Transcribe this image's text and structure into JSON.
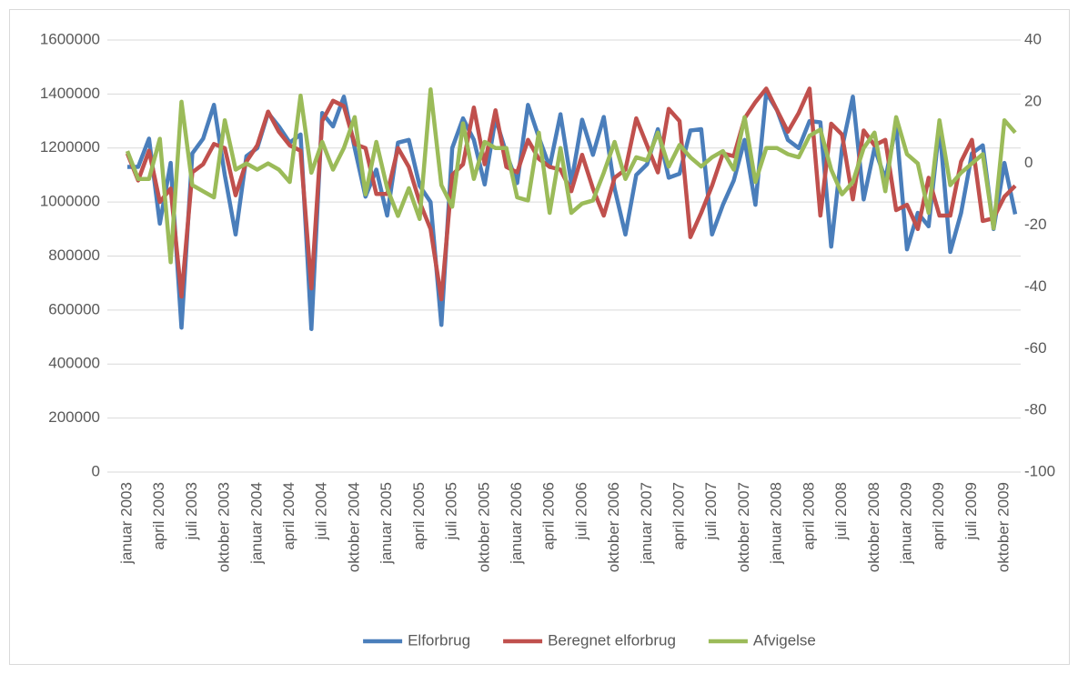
{
  "chart_data": {
    "type": "line",
    "categories": [
      "januar 2003",
      null,
      null,
      "april 2003",
      null,
      null,
      "juli 2003",
      null,
      null,
      "oktober 2003",
      null,
      null,
      "januar 2004",
      null,
      null,
      "april 2004",
      null,
      null,
      "juli 2004",
      null,
      null,
      "oktober 2004",
      null,
      null,
      "januar 2005",
      null,
      null,
      "april 2005",
      null,
      null,
      "juli 2005",
      null,
      null,
      "oktober 2005",
      null,
      null,
      "januar 2006",
      null,
      null,
      "april 2006",
      null,
      null,
      "juli 2006",
      null,
      null,
      "oktober 2006",
      null,
      null,
      "januar 2007",
      null,
      null,
      "april 2007",
      null,
      null,
      "juli 2007",
      null,
      null,
      "oktober 2007",
      null,
      null,
      "januar 2008",
      null,
      null,
      "april 2008",
      null,
      null,
      "juli 2008",
      null,
      null,
      "oktober 2008",
      null,
      null,
      "januar 2009",
      null,
      null,
      "april 2009",
      null,
      null,
      "juli 2009",
      null,
      null,
      "oktober 2009",
      null
    ],
    "series": [
      {
        "name": "Elforbrug",
        "color": "#4a7ebb",
        "values": [
          1130000,
          1130000,
          1235000,
          920000,
          1145000,
          535000,
          1180000,
          1235000,
          1360000,
          1100000,
          880000,
          1170000,
          1200000,
          1330000,
          1280000,
          1220000,
          1250000,
          530000,
          1330000,
          1280000,
          1390000,
          1200000,
          1020000,
          1120000,
          950000,
          1220000,
          1230000,
          1060000,
          1000000,
          545000,
          1200000,
          1310000,
          1230000,
          1065000,
          1310000,
          1180000,
          1070000,
          1360000,
          1240000,
          1130000,
          1325000,
          1070000,
          1305000,
          1175000,
          1315000,
          1050000,
          880000,
          1100000,
          1140000,
          1270000,
          1090000,
          1105000,
          1265000,
          1270000,
          880000,
          990000,
          1080000,
          1230000,
          990000,
          1405000,
          1340000,
          1230000,
          1200000,
          1300000,
          1295000,
          835000,
          1200000,
          1390000,
          1010000,
          1200000,
          1085000,
          1285000,
          825000,
          960000,
          910000,
          1280000,
          815000,
          960000,
          1180000,
          1210000,
          900000,
          1145000,
          955000
        ]
      },
      {
        "name": "Beregnet elforbrug",
        "color": "#c0504d",
        "values": [
          1180000,
          1080000,
          1190000,
          1000000,
          1050000,
          650000,
          1110000,
          1140000,
          1215000,
          1200000,
          1025000,
          1150000,
          1210000,
          1335000,
          1260000,
          1210000,
          1190000,
          680000,
          1300000,
          1375000,
          1355000,
          1215000,
          1200000,
          1030000,
          1030000,
          1200000,
          1130000,
          1000000,
          900000,
          640000,
          1100000,
          1140000,
          1350000,
          1140000,
          1340000,
          1130000,
          1110000,
          1230000,
          1160000,
          1130000,
          1120000,
          1040000,
          1175000,
          1050000,
          950000,
          1090000,
          1120000,
          1310000,
          1210000,
          1110000,
          1345000,
          1300000,
          870000,
          960000,
          1060000,
          1180000,
          1170000,
          1310000,
          1370000,
          1420000,
          1340000,
          1260000,
          1330000,
          1420000,
          950000,
          1290000,
          1250000,
          1010000,
          1265000,
          1210000,
          1230000,
          970000,
          990000,
          900000,
          1090000,
          950000,
          950000,
          1150000,
          1230000,
          930000,
          940000,
          1020000,
          1060000
        ]
      },
      {
        "name": "Afvigelse",
        "color": "#9bbb59",
        "axis": "y2",
        "values": [
          4,
          -5,
          -5,
          8,
          -32,
          20,
          -7,
          -9,
          -11,
          14,
          -2,
          0,
          -2,
          0,
          -2,
          -6,
          22,
          -3,
          7,
          -2,
          5,
          15,
          -10,
          7,
          -8,
          -17,
          -8,
          -18,
          24,
          -7,
          -14,
          13,
          -5,
          7,
          5,
          5,
          -11,
          -12,
          10,
          -16,
          5,
          -16,
          -13,
          -12,
          -3,
          7,
          -5,
          2,
          1,
          10,
          -1,
          6,
          2,
          -1,
          2,
          4,
          -2,
          15,
          -6,
          5,
          5,
          3,
          2,
          9,
          11,
          -2,
          -10,
          -6,
          5,
          10,
          -9,
          15,
          3,
          0,
          -16,
          14,
          -7,
          -3,
          0,
          3,
          -21,
          14,
          10
        ]
      }
    ],
    "ylim": [
      0,
      1600000
    ],
    "yticks": [
      0,
      200000,
      400000,
      600000,
      800000,
      1000000,
      1200000,
      1400000,
      1600000
    ],
    "y2lim": [
      -100,
      40
    ],
    "y2ticks": [
      -100,
      -80,
      -60,
      -40,
      -20,
      0,
      20,
      40
    ],
    "grid": true,
    "legend": "bottom"
  }
}
